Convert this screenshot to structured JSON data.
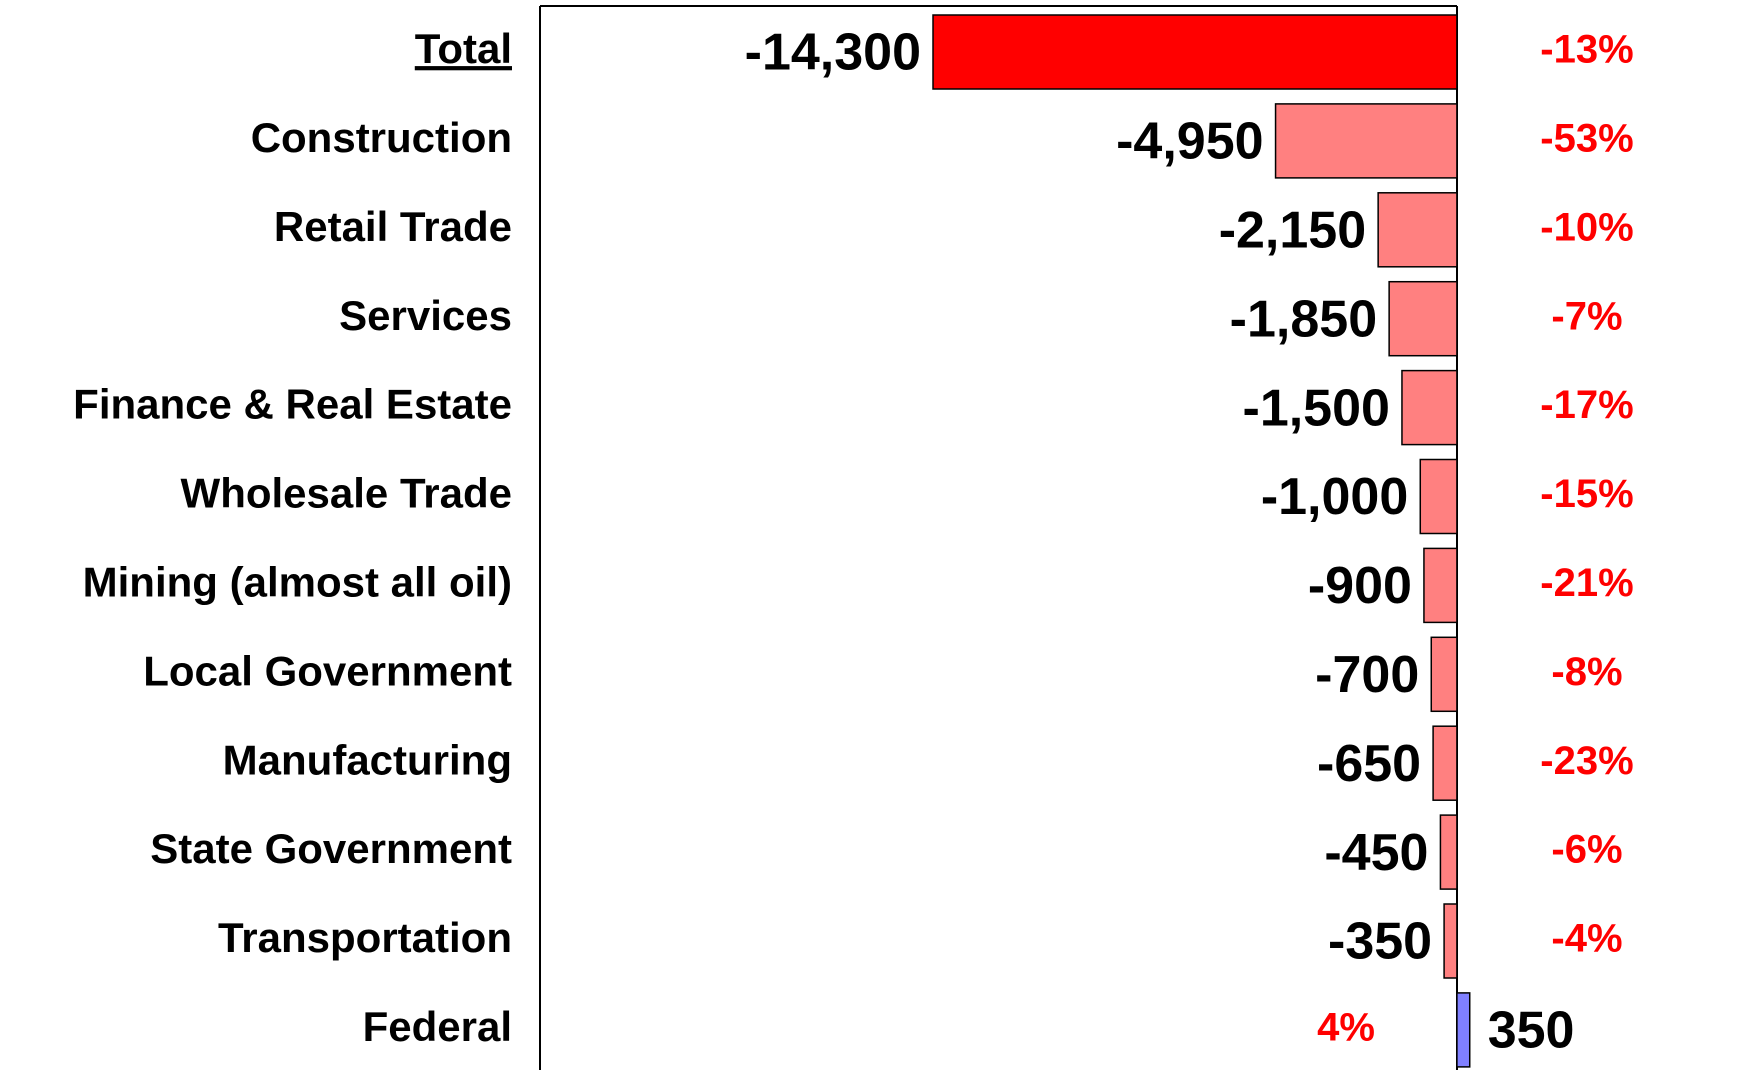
{
  "chart_data": {
    "type": "barh",
    "categories": [
      "Total",
      "Construction",
      "Retail Trade",
      "Services",
      "Finance & Real Estate",
      "Wholesale Trade",
      "Mining (almost all oil)",
      "Local Government",
      "Manufacturing",
      "State Government",
      "Transportation",
      "Federal"
    ],
    "values": [
      -14300,
      -4950,
      -2150,
      -1850,
      -1500,
      -1000,
      -900,
      -700,
      -650,
      -450,
      -350,
      350
    ],
    "value_labels": [
      "-14,300",
      "-4,950",
      "-2,150",
      "-1,850",
      "-1,500",
      "-1,000",
      "-900",
      "-700",
      "-650",
      "-450",
      "-350",
      "350"
    ],
    "percent_labels": [
      "-13%",
      "-53%",
      "-10%",
      "-7%",
      "-17%",
      "-15%",
      "-21%",
      "-8%",
      "-23%",
      "-6%",
      "-4%",
      "4%"
    ],
    "colors": [
      "#ff0000",
      "#ff8080",
      "#ff8080",
      "#ff8080",
      "#ff8080",
      "#ff8080",
      "#ff8080",
      "#ff8080",
      "#ff8080",
      "#ff8080",
      "#ff8080",
      "#8080ff"
    ],
    "xlim": [
      -25000,
      8000
    ]
  }
}
